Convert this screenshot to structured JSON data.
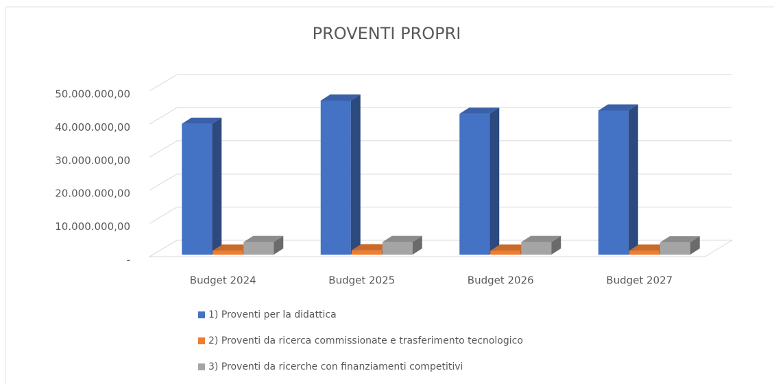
{
  "chart_data": {
    "type": "bar3d",
    "title": "PROVENTI PROPRI",
    "categories": [
      "Budget 2024",
      "Budget 2025",
      "Budget 2026",
      "Budget 2027"
    ],
    "series": [
      {
        "name": "1) Proventi per la didattica",
        "color": "#4472c4",
        "values": [
          39500000,
          46500000,
          42500000,
          43500000
        ]
      },
      {
        "name": "2) Proventi da ricerca commissionate e trasferimento tecnologico",
        "color": "#ed7d31",
        "values": [
          1200000,
          1300000,
          1200000,
          1200000
        ]
      },
      {
        "name": "3) Proventi da ricerche con finanziamenti competitivi",
        "color": "#a5a5a5",
        "values": [
          3800000,
          3800000,
          3800000,
          3700000
        ]
      }
    ],
    "ylim": [
      0,
      50000000
    ],
    "yticks": [
      {
        "value": 0,
        "label": "-"
      },
      {
        "value": 10000000,
        "label": "10.000.000,00"
      },
      {
        "value": 20000000,
        "label": "20.000.000,00"
      },
      {
        "value": 30000000,
        "label": "30.000.000,00"
      },
      {
        "value": 40000000,
        "label": "40.000.000,00"
      },
      {
        "value": 50000000,
        "label": "50.000.000,00"
      }
    ],
    "grid": true,
    "legend": "bottom"
  }
}
